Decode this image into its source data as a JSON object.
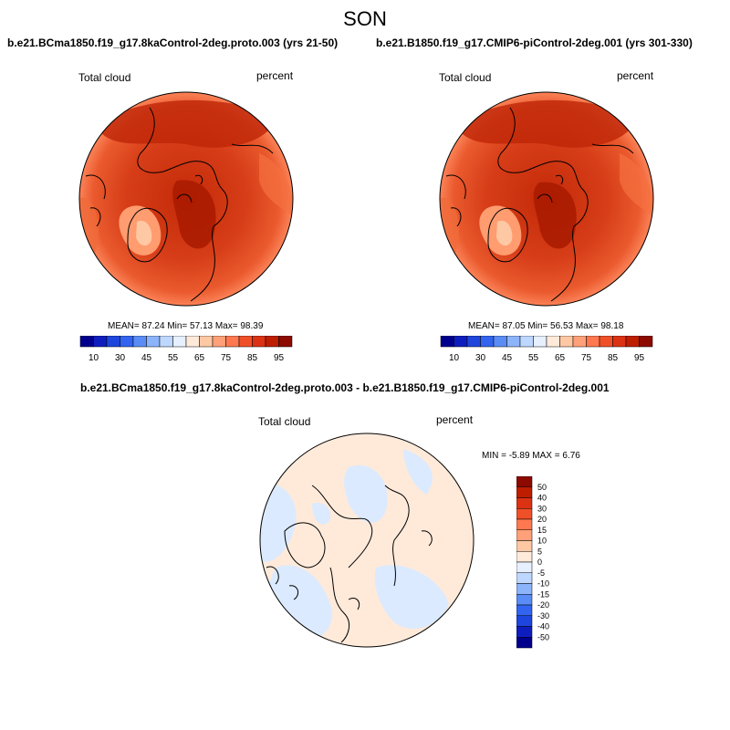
{
  "season": "SON",
  "panels": [
    {
      "title": "b.e21.BCma1850.f19_g17.8kaControl-2deg.proto.003 (yrs 21-50)",
      "variable": "Total cloud",
      "units": "percent",
      "stats_label": "MEAN=  87.24  Min=  57.13  Max=  98.39",
      "mean": 87.24,
      "min": 57.13,
      "max": 98.39
    },
    {
      "title": "b.e21.B1850.f19_g17.CMIP6-piControl-2deg.001 (yrs 301-330)",
      "variable": "Total cloud",
      "units": "percent",
      "stats_label": "MEAN=  87.05  Min=  56.53  Max=  98.18",
      "mean": 87.05,
      "min": 56.53,
      "max": 98.18
    }
  ],
  "diff_panel": {
    "title": "b.e21.BCma1850.f19_g17.8kaControl-2deg.proto.003 - b.e21.B1850.f19_g17.CMIP6-piControl-2deg.001",
    "variable": "Total cloud",
    "units": "percent",
    "minmax_label": "MIN =  -5.89 MAX =   6.76",
    "min": -5.89,
    "max": 6.76
  },
  "abs_colorbar": {
    "labels": [
      "10",
      "30",
      "45",
      "55",
      "65",
      "75",
      "85",
      "95"
    ],
    "colors": [
      "#00008c",
      "#0e1ebe",
      "#1e46dc",
      "#3264f0",
      "#5a8cf5",
      "#8cb4fa",
      "#bed7ff",
      "#e6f0ff",
      "#ffeada",
      "#ffc8a4",
      "#ffa078",
      "#ff7850",
      "#f05028",
      "#dc3214",
      "#be1e00",
      "#8c0a00"
    ]
  },
  "diff_colorbar": {
    "labels": [
      "50",
      "40",
      "30",
      "20",
      "15",
      "10",
      "5",
      "0",
      "-5",
      "-10",
      "-15",
      "-20",
      "-30",
      "-40",
      "-50"
    ],
    "colors": [
      "#8c0a00",
      "#be1e00",
      "#dc3214",
      "#f05028",
      "#ff7850",
      "#ffa078",
      "#ffc8a4",
      "#ffeada",
      "#e6f0ff",
      "#bed7ff",
      "#8cb4fa",
      "#5a8cf5",
      "#3264f0",
      "#1e46dc",
      "#0e1ebe",
      "#00008c"
    ]
  }
}
